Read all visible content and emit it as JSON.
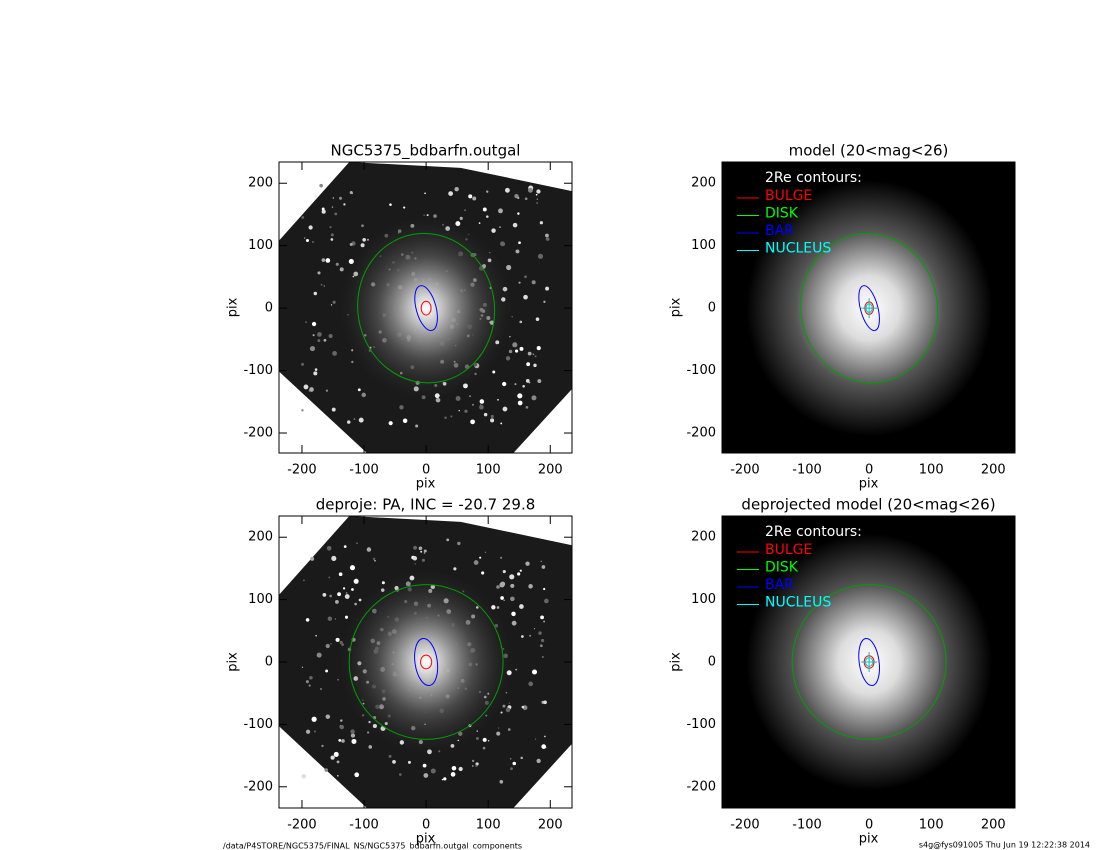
{
  "chart_data": [
    {
      "type": "image",
      "title": "NGC5375_bdbarfn.outgal",
      "xlabel": "pix",
      "ylabel": "pix",
      "xlim": [
        -237,
        235
      ],
      "ylim": [
        -232,
        234
      ],
      "xticks": [
        -200,
        -100,
        0,
        100,
        200
      ],
      "yticks": [
        -200,
        -100,
        0,
        100,
        200
      ],
      "contours": [
        {
          "color": "#00a000",
          "rx": 110,
          "ry": 120,
          "angle": -10
        },
        {
          "color": "#0000ff",
          "rx": 16,
          "ry": 37,
          "angle": -15
        },
        {
          "color": "#ff0000",
          "rx": 8,
          "ry": 11,
          "angle": 0
        }
      ]
    },
    {
      "type": "image",
      "title": "model (20<mag<26)",
      "xlabel": "pix",
      "ylabel": "pix",
      "xlim": [
        -237,
        235
      ],
      "ylim": [
        -232,
        234
      ],
      "xticks": [
        -200,
        -100,
        0,
        100,
        200
      ],
      "yticks": [
        -200,
        -100,
        0,
        100,
        200
      ],
      "legend": {
        "title": "2Re contours:",
        "entries": [
          {
            "name": "BULGE",
            "color": "#ff0000"
          },
          {
            "name": "DISK",
            "color": "#00ff00"
          },
          {
            "name": "BAR",
            "color": "#0000ff"
          },
          {
            "name": "NUCLEUS",
            "color": "#00ffff"
          }
        ]
      },
      "contours": [
        {
          "color": "#00a000",
          "rx": 110,
          "ry": 120,
          "angle": -10
        },
        {
          "color": "#0000ff",
          "rx": 14,
          "ry": 37,
          "angle": -15
        },
        {
          "color": "#ff0000",
          "rx": 7,
          "ry": 10,
          "angle": 0
        },
        {
          "color": "#00c0c0",
          "rx": 5,
          "ry": 7,
          "angle": 0
        }
      ]
    },
    {
      "type": "image",
      "title": "deproje: PA, INC = -20.7    29.8",
      "xlabel": "pix",
      "ylabel": "pix",
      "xlim": [
        -237,
        235
      ],
      "ylim": [
        -234,
        234
      ],
      "xticks": [
        -200,
        -100,
        0,
        100,
        200
      ],
      "yticks": [
        -200,
        -100,
        0,
        100,
        200
      ],
      "contours": [
        {
          "color": "#00a000",
          "rx": 124,
          "ry": 124,
          "angle": 0
        },
        {
          "color": "#0000ff",
          "rx": 18,
          "ry": 38,
          "angle": -8
        },
        {
          "color": "#ff0000",
          "rx": 9,
          "ry": 11,
          "angle": 0
        }
      ]
    },
    {
      "type": "image",
      "title": "deprojected model (20<mag<26)",
      "xlabel": "pix",
      "ylabel": "pix",
      "xlim": [
        -237,
        235
      ],
      "ylim": [
        -234,
        234
      ],
      "xticks": [
        -200,
        -100,
        0,
        100,
        200
      ],
      "yticks": [
        -200,
        -100,
        0,
        100,
        200
      ],
      "legend": {
        "title": "2Re contours:",
        "entries": [
          {
            "name": "BULGE",
            "color": "#ff0000"
          },
          {
            "name": "DISK",
            "color": "#00ff00"
          },
          {
            "name": "BAR",
            "color": "#0000ff"
          },
          {
            "name": "NUCLEUS",
            "color": "#00ffff"
          }
        ]
      },
      "contours": [
        {
          "color": "#00a000",
          "rx": 124,
          "ry": 124,
          "angle": 0
        },
        {
          "color": "#0000ff",
          "rx": 16,
          "ry": 38,
          "angle": -8
        },
        {
          "color": "#ff0000",
          "rx": 8,
          "ry": 10,
          "angle": 0
        },
        {
          "color": "#00c0c0",
          "rx": 6,
          "ry": 7,
          "angle": 0
        }
      ]
    }
  ],
  "footer": {
    "path": "/data/P4STORE/NGC5375/FINAL_NS/NGC5375_bdbarfn.outgal_components",
    "stamp": "s4g@fys091005  Thu Jun 19 12:22:38 2014"
  }
}
